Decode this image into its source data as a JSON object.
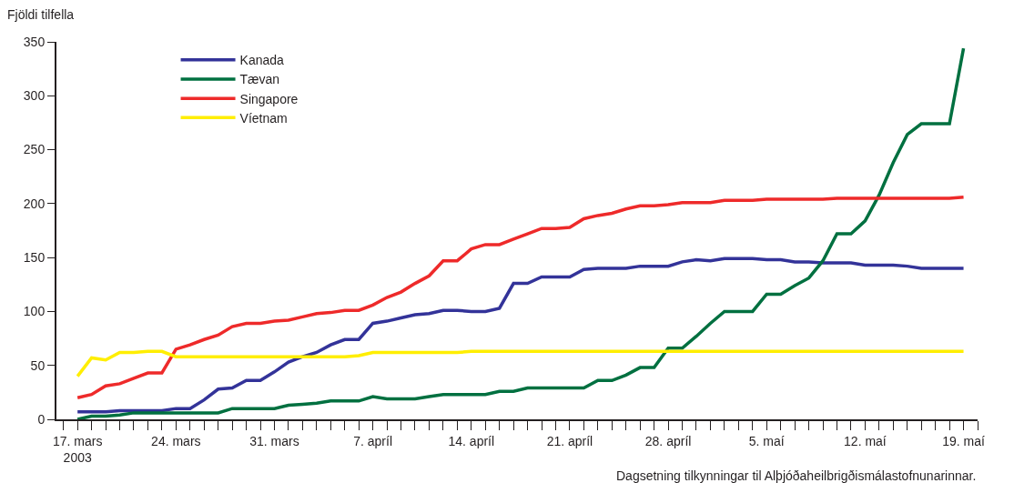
{
  "chart_data": {
    "type": "line",
    "ylabel": "Fjöldi tilfella",
    "xlabel": "Dagsetning tilkynningar til Alþjóðaheilbrigðismálastofnunarinnar.",
    "x": [
      "2003-03-17",
      "2003-03-18",
      "2003-03-19",
      "2003-03-20",
      "2003-03-21",
      "2003-03-22",
      "2003-03-23",
      "2003-03-24",
      "2003-03-25",
      "2003-03-26",
      "2003-03-27",
      "2003-03-28",
      "2003-03-29",
      "2003-03-30",
      "2003-03-31",
      "2003-04-01",
      "2003-04-02",
      "2003-04-03",
      "2003-04-04",
      "2003-04-05",
      "2003-04-06",
      "2003-04-07",
      "2003-04-08",
      "2003-04-09",
      "2003-04-10",
      "2003-04-11",
      "2003-04-12",
      "2003-04-13",
      "2003-04-14",
      "2003-04-15",
      "2003-04-16",
      "2003-04-17",
      "2003-04-18",
      "2003-04-19",
      "2003-04-20",
      "2003-04-21",
      "2003-04-22",
      "2003-04-23",
      "2003-04-24",
      "2003-04-25",
      "2003-04-26",
      "2003-04-27",
      "2003-04-28",
      "2003-04-29",
      "2003-04-30",
      "2003-05-01",
      "2003-05-02",
      "2003-05-03",
      "2003-05-04",
      "2003-05-05",
      "2003-05-06",
      "2003-05-07",
      "2003-05-08",
      "2003-05-09",
      "2003-05-10",
      "2003-05-11",
      "2003-05-12",
      "2003-05-13",
      "2003-05-14",
      "2003-05-15",
      "2003-05-16",
      "2003-05-17",
      "2003-05-18",
      "2003-05-19"
    ],
    "series": [
      {
        "name": "Kanada",
        "color": "#333399",
        "values": [
          7,
          7,
          7,
          8,
          8,
          8,
          8,
          10,
          10,
          18,
          28,
          29,
          36,
          36,
          44,
          53,
          58,
          62,
          69,
          74,
          74,
          89,
          91,
          94,
          97,
          98,
          101,
          101,
          100,
          100,
          103,
          126,
          126,
          132,
          132,
          132,
          139,
          140,
          140,
          140,
          142,
          142,
          142,
          146,
          148,
          147,
          149,
          149,
          149,
          148,
          148,
          146,
          146,
          145,
          145,
          145,
          143,
          143,
          143,
          142,
          140,
          140,
          140,
          140
        ]
      },
      {
        "name": "Tævan",
        "color": "#007040",
        "values": [
          0,
          3,
          3,
          4,
          6,
          6,
          6,
          6,
          6,
          6,
          6,
          10,
          10,
          10,
          10,
          13,
          14,
          15,
          17,
          17,
          17,
          21,
          19,
          19,
          19,
          21,
          23,
          23,
          23,
          23,
          26,
          26,
          29,
          29,
          29,
          29,
          29,
          36,
          36,
          41,
          48,
          48,
          66,
          66,
          77,
          89,
          100,
          100,
          100,
          116,
          116,
          124,
          131,
          147,
          172,
          172,
          184,
          208,
          238,
          264,
          274,
          274,
          274,
          344
        ]
      },
      {
        "name": "Singapore",
        "color": "#ee2a2a",
        "values": [
          20,
          23,
          31,
          33,
          38,
          43,
          43,
          65,
          69,
          74,
          78,
          86,
          89,
          89,
          91,
          92,
          95,
          98,
          99,
          101,
          101,
          106,
          113,
          118,
          126,
          133,
          147,
          147,
          158,
          162,
          162,
          167,
          172,
          177,
          177,
          178,
          186,
          189,
          191,
          195,
          198,
          198,
          199,
          201,
          201,
          201,
          203,
          203,
          203,
          204,
          204,
          204,
          204,
          204,
          205,
          205,
          205,
          205,
          205,
          205,
          205,
          205,
          205,
          206
        ]
      },
      {
        "name": "Víetnam",
        "color": "#ffee00",
        "values": [
          40,
          57,
          55,
          62,
          62,
          63,
          63,
          58,
          58,
          58,
          58,
          58,
          58,
          58,
          58,
          58,
          58,
          58,
          58,
          58,
          59,
          62,
          62,
          62,
          62,
          62,
          62,
          62,
          63,
          63,
          63,
          63,
          63,
          63,
          63,
          63,
          63,
          63,
          63,
          63,
          63,
          63,
          63,
          63,
          63,
          63,
          63,
          63,
          63,
          63,
          63,
          63,
          63,
          63,
          63,
          63,
          63,
          63,
          63,
          63,
          63,
          63,
          63,
          63
        ]
      }
    ],
    "xlim": [
      "2003-03-15T12:00",
      "2003-05-20T00:00"
    ],
    "xticks": [
      {
        "value": "2003-03-17",
        "label": "17. mars\n2003"
      },
      {
        "value": "2003-03-24",
        "label": "24. mars"
      },
      {
        "value": "2003-03-31",
        "label": "31. mars"
      },
      {
        "value": "2003-04-07",
        "label": "7. apríl"
      },
      {
        "value": "2003-04-14",
        "label": "14. apríl"
      },
      {
        "value": "2003-04-21",
        "label": "21. apríl"
      },
      {
        "value": "2003-04-28",
        "label": "28. apríl"
      },
      {
        "value": "2003-05-05",
        "label": "5. maí"
      },
      {
        "value": "2003-05-12",
        "label": "12. maí"
      },
      {
        "value": "2003-05-19",
        "label": "19. maí"
      }
    ],
    "ylim": [
      0,
      350
    ],
    "yticks": [
      0,
      50,
      100,
      150,
      200,
      250,
      300,
      350
    ],
    "legend": "top left",
    "marker": "none",
    "line_style": "solid"
  }
}
